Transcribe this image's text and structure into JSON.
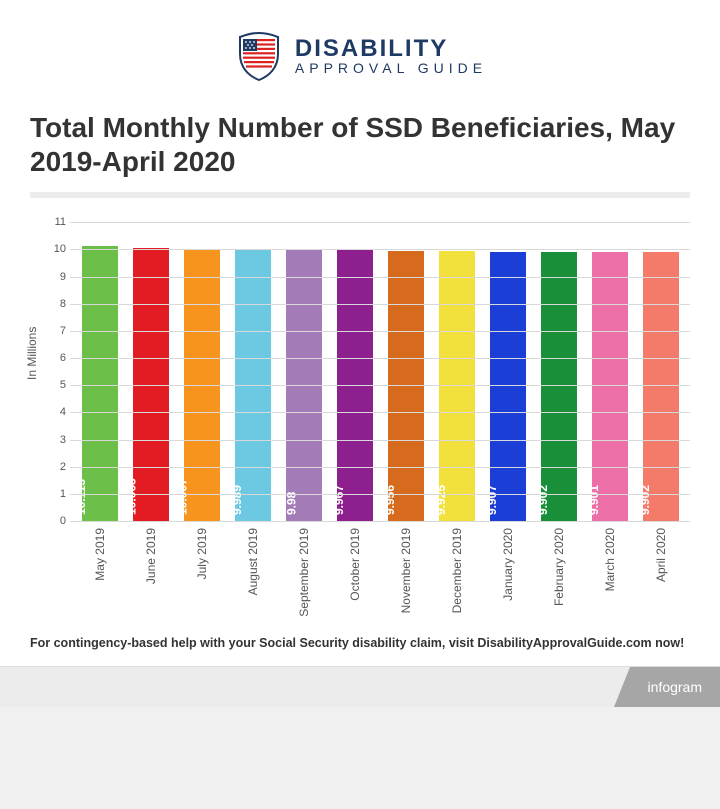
{
  "logo": {
    "main": "DISABILITY",
    "sub": "APPROVAL GUIDE",
    "text_color": "#1f3a63"
  },
  "title": "Total Monthly Number of SSD Beneficiaries, May 2019-April 2020",
  "chart": {
    "type": "bar",
    "ylabel": "In Millions",
    "ylim_max": 11,
    "ytick_step": 1,
    "grid_color": "#d9d9d9",
    "background_color": "#ffffff",
    "categories": [
      "May 2019",
      "June 2019",
      "July 2019",
      "August 2019",
      "September 2019",
      "October 2019",
      "November 2019",
      "December 2019",
      "January 2020",
      "February 2020",
      "March 2020",
      "April 2020"
    ],
    "values": [
      10.113,
      10.063,
      10.007,
      9.989,
      9.98,
      9.967,
      9.956,
      9.925,
      9.907,
      9.902,
      9.901,
      9.902
    ],
    "value_labels": [
      "10.113",
      "10.063",
      "10.007",
      "9.989",
      "9.98",
      "9.967",
      "9.956",
      "9.925",
      "9.907",
      "9.902",
      "9.901",
      "9.902"
    ],
    "bar_colors": [
      "#6cc04a",
      "#e31b23",
      "#f7941e",
      "#6dc8e1",
      "#a37cb7",
      "#8e1f8e",
      "#d66b1e",
      "#f2e13d",
      "#1b3fd6",
      "#1a8f3a",
      "#ed6fa8",
      "#f47a6a"
    ],
    "bar_label_color": "#ffffff",
    "axis_color": "#444444",
    "tick_color": "#555555"
  },
  "footer_note": "For contingency-based help with your Social Security disability claim, visit DisabilityApprovalGuide.com now!",
  "infogram_label": "infogram"
}
